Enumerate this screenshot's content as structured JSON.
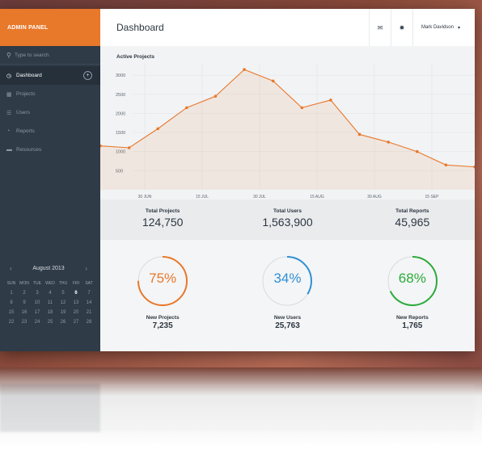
{
  "brand": "ADMIN PANEL",
  "search_placeholder": "Type to search",
  "nav": [
    {
      "label": "Dashboard",
      "icon": "dashboard-icon",
      "active": true
    },
    {
      "label": "Projects",
      "icon": "grid-icon"
    },
    {
      "label": "Users",
      "icon": "users-icon"
    },
    {
      "label": "Reports",
      "icon": "pie-icon"
    },
    {
      "label": "Resources",
      "icon": "folder-icon"
    }
  ],
  "calendar": {
    "month": "August 2013",
    "days_of_week": [
      "SUN",
      "MON",
      "TUE",
      "WED",
      "THU",
      "FRI",
      "SAT"
    ],
    "today": 6,
    "weeks": [
      [
        1,
        2,
        3,
        4,
        5,
        6,
        7
      ],
      [
        8,
        9,
        10,
        11,
        12,
        13,
        14
      ],
      [
        15,
        16,
        17,
        18,
        19,
        20,
        21
      ],
      [
        22,
        23,
        24,
        25,
        26,
        27,
        28
      ]
    ]
  },
  "header": {
    "title": "Dashboard",
    "user": "Mark Davidson"
  },
  "chart_data": {
    "type": "area",
    "title": "Active Projects",
    "y_ticks": [
      500,
      1000,
      1500,
      2000,
      2500,
      3000
    ],
    "ylim": [
      0,
      3300
    ],
    "x_ticks": [
      "30 JUN",
      "15 JUL",
      "30 JUL",
      "15 AUG",
      "30 AUG",
      "15 SEP"
    ],
    "values": [
      1150,
      1100,
      1600,
      2150,
      2450,
      3150,
      2850,
      2150,
      2350,
      1450,
      1250,
      1000,
      650,
      600
    ],
    "color": "#e8782a",
    "grid": true
  },
  "stats": [
    {
      "label": "Total Projects",
      "value": "124,750"
    },
    {
      "label": "Total Users",
      "value": "1,563,900"
    },
    {
      "label": "Total Reports",
      "value": "45,965"
    }
  ],
  "rings": [
    {
      "pct_text": "75%",
      "pct": 0.75,
      "label": "New Projects",
      "value": "7,235",
      "color": "#e8782a"
    },
    {
      "pct_text": "34%",
      "pct": 0.34,
      "label": "New Users",
      "value": "25,763",
      "color": "#2f8fd6"
    },
    {
      "pct_text": "68%",
      "pct": 0.68,
      "label": "New Reports",
      "value": "1,765",
      "color": "#2aab3a"
    }
  ]
}
